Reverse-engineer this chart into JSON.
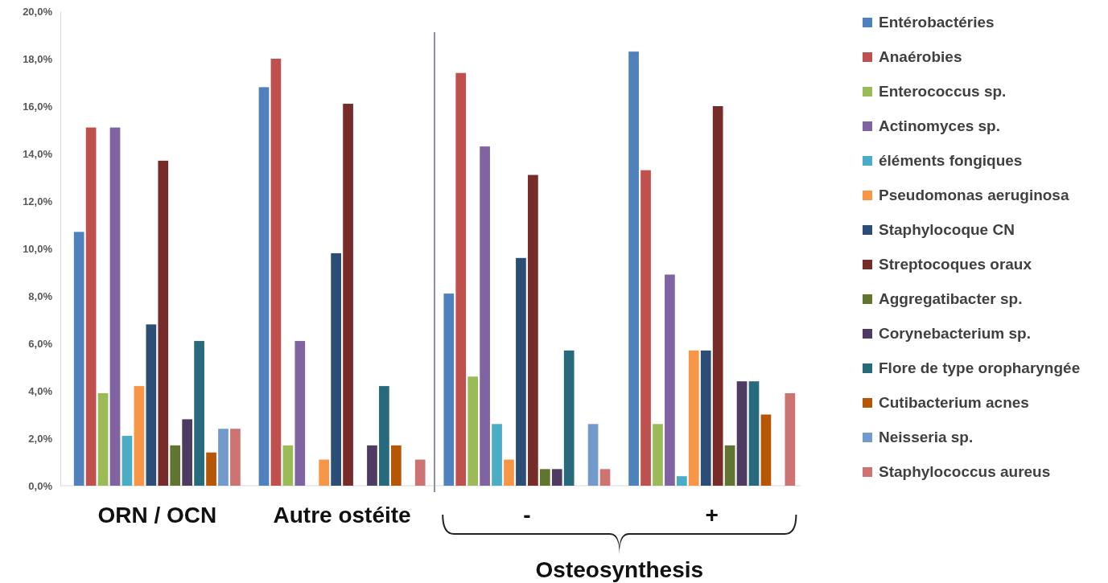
{
  "chart_data": {
    "type": "bar",
    "categories": [
      "ORN / OCN",
      "Autre ostéite",
      "-",
      "+"
    ],
    "series": [
      {
        "name": "Entérobactéries",
        "color": "#4f81bd",
        "values": [
          10.7,
          16.8,
          8.1,
          18.3
        ]
      },
      {
        "name": "Anaérobies",
        "color": "#c0504d",
        "values": [
          15.1,
          18.0,
          17.4,
          13.3
        ]
      },
      {
        "name": "Enterococcus sp.",
        "color": "#9bbb59",
        "values": [
          3.9,
          1.7,
          4.6,
          2.6
        ]
      },
      {
        "name": "Actinomyces sp.",
        "color": "#8064a2",
        "values": [
          15.1,
          6.1,
          14.3,
          8.9
        ]
      },
      {
        "name": "éléments fongiques",
        "color": "#4bacc6",
        "values": [
          2.1,
          0,
          2.6,
          0.4
        ]
      },
      {
        "name": "Pseudomonas aeruginosa",
        "color": "#f79646",
        "values": [
          4.2,
          1.1,
          1.1,
          5.7
        ]
      },
      {
        "name": "Staphylocoque CN",
        "color": "#2c4d75",
        "values": [
          6.8,
          9.8,
          9.6,
          5.7
        ]
      },
      {
        "name": "Streptocoques oraux",
        "color": "#772c2a",
        "values": [
          13.7,
          16.1,
          13.1,
          16.0
        ]
      },
      {
        "name": "Aggregatibacter sp.",
        "color": "#5f7530",
        "values": [
          1.7,
          0,
          0.7,
          1.7
        ]
      },
      {
        "name": "Corynebacterium sp.",
        "color": "#4d3b62",
        "values": [
          2.8,
          1.7,
          0.7,
          4.4
        ]
      },
      {
        "name": "Flore de type oropharyngée",
        "color": "#276a7c",
        "values": [
          6.1,
          4.2,
          5.7,
          4.4
        ]
      },
      {
        "name": "Cutibacterium acnes",
        "color": "#b65708",
        "values": [
          1.4,
          1.7,
          0,
          3.0
        ]
      },
      {
        "name": "Neisseria sp.",
        "color": "#729aca",
        "values": [
          2.4,
          0,
          2.6,
          0
        ]
      },
      {
        "name": "Staphylococcus aureus",
        "color": "#cd7371",
        "values": [
          2.4,
          1.1,
          0.7,
          3.9
        ]
      }
    ],
    "ylim": [
      0,
      20
    ],
    "yticks": [
      {
        "value": 0,
        "label": "0,0%"
      },
      {
        "value": 2,
        "label": "2,0%"
      },
      {
        "value": 4,
        "label": "4,0%"
      },
      {
        "value": 6,
        "label": "6,0%"
      },
      {
        "value": 8,
        "label": "8,0%"
      },
      {
        "value": 10,
        "label": "10,0%"
      },
      {
        "value": 12,
        "label": "12,0%"
      },
      {
        "value": 14,
        "label": "14,0%"
      },
      {
        "value": 16,
        "label": "16,0%"
      },
      {
        "value": 18,
        "label": "18,0%"
      },
      {
        "value": 20,
        "label": "20,0%"
      }
    ],
    "annotations": [
      "Osteosynthesis"
    ],
    "grid": false,
    "legend": "right"
  }
}
